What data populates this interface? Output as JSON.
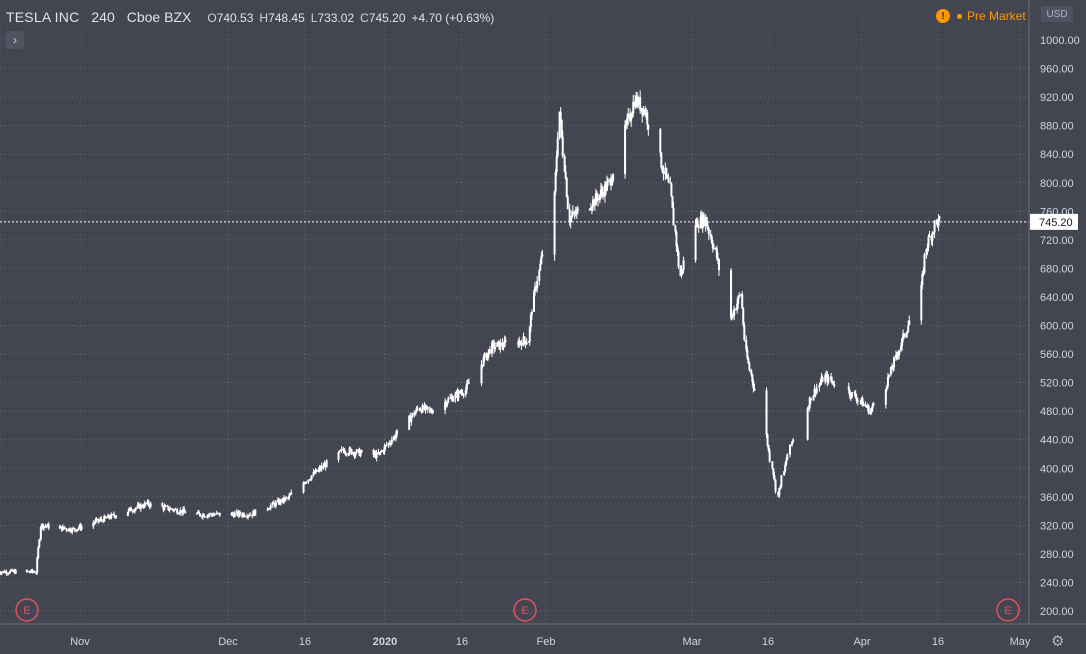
{
  "header": {
    "symbol": "TESLA INC",
    "interval": "240",
    "exchange": "Cboe BZX",
    "open_label": "O",
    "open": "740.53",
    "high_label": "H",
    "high": "748.45",
    "low_label": "L",
    "low": "733.02",
    "close_label": "C",
    "close": "745.20",
    "change": "+4.70 (+0.63%)"
  },
  "status": {
    "premarket_label": "Pre Market",
    "premarket_icon": "!",
    "currency": "USD"
  },
  "colors": {
    "background": "#434651",
    "candle": "#ffffff",
    "grid": "#7a7d88",
    "price_line": "#ffffff",
    "earnings_marker": "#e05260",
    "premarket": "#ff9800"
  },
  "chart_data": {
    "type": "candlestick",
    "title": "",
    "symbol": "TESLA INC",
    "interval": "240",
    "exchange": "Cboe BZX",
    "ylim": [
      180,
      1020
    ],
    "y_ticks": [
      200,
      240,
      280,
      320,
      360,
      400,
      440,
      480,
      520,
      560,
      600,
      640,
      680,
      720,
      760,
      800,
      840,
      880,
      920,
      960,
      1000
    ],
    "x_labels": [
      "Nov",
      "Dec",
      "16",
      "2020",
      "16",
      "Feb",
      "Mar",
      "16",
      "Apr",
      "16",
      "May"
    ],
    "last_price": 745.2,
    "last_price_label": "745.20",
    "earnings_label": "E",
    "earnings_markers": 3,
    "grid": true,
    "scale": "linear",
    "approx_path": [
      [
        "Oct 15",
        255
      ],
      [
        "Oct 23",
        255
      ],
      [
        "Oct 24",
        320
      ],
      [
        "Oct 31",
        314
      ],
      [
        "Nov 15",
        350
      ],
      [
        "Nov 25",
        335
      ],
      [
        "Dec 6",
        336
      ],
      [
        "Dec 13",
        358
      ],
      [
        "Dec 16",
        380
      ],
      [
        "Dec 24",
        425
      ],
      [
        "Dec 31",
        418
      ],
      [
        "Jan 8",
        485
      ],
      [
        "Jan 10",
        480
      ],
      [
        "Jan 17",
        510
      ],
      [
        "Jan 22",
        570
      ],
      [
        "Jan 29",
        580
      ],
      [
        "Jan 30",
        640
      ],
      [
        "Feb 3",
        780
      ],
      [
        "Feb 4",
        900
      ],
      [
        "Feb 6",
        750
      ],
      [
        "Feb 11",
        775
      ],
      [
        "Feb 14",
        800
      ],
      [
        "Feb 19",
        917
      ],
      [
        "Feb 21",
        901
      ],
      [
        "Feb 24",
        833
      ],
      [
        "Feb 26",
        790
      ],
      [
        "Feb 28",
        670
      ],
      [
        "Mar 2",
        743
      ],
      [
        "Mar 4",
        749
      ],
      [
        "Mar 6",
        703
      ],
      [
        "Mar 9",
        610
      ],
      [
        "Mar 11",
        645
      ],
      [
        "Mar 12",
        560
      ],
      [
        "Mar 16",
        445
      ],
      [
        "Mar 18",
        361
      ],
      [
        "Mar 20",
        428
      ],
      [
        "Mar 24",
        505
      ],
      [
        "Mar 26",
        528
      ],
      [
        "Mar 31",
        502
      ],
      [
        "Apr 3",
        480
      ],
      [
        "Apr 6",
        516
      ],
      [
        "Apr 9",
        573
      ],
      [
        "Apr 13",
        650
      ],
      [
        "Apr 14",
        710
      ],
      [
        "Apr 16",
        745.2
      ]
    ]
  }
}
